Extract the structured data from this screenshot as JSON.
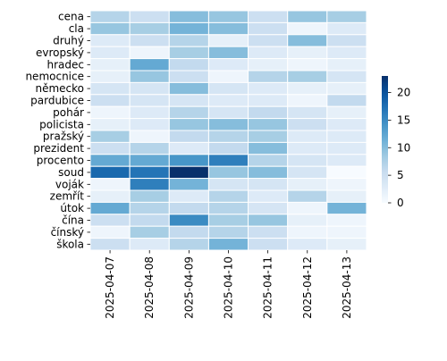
{
  "chart_data": {
    "type": "heatmap",
    "title": "",
    "xlabel": "",
    "ylabel": "",
    "x": [
      "2025-04-07",
      "2025-04-08",
      "2025-04-09",
      "2025-04-10",
      "2025-04-11",
      "2025-04-12",
      "2025-04-13"
    ],
    "y": [
      "cena",
      "cla",
      "druhý",
      "evropský",
      "hradec",
      "nemocnice",
      "německo",
      "pardubice",
      "pohár",
      "policista",
      "pražský",
      "prezident",
      "procento",
      "soud",
      "voják",
      "zemřít",
      "útok",
      "čína",
      "čínský",
      "škola"
    ],
    "values": [
      [
        7,
        5,
        10,
        9,
        5,
        9,
        8
      ],
      [
        9,
        8,
        11,
        10,
        5,
        1,
        3
      ],
      [
        3,
        5,
        7,
        2,
        5,
        10,
        5
      ],
      [
        3,
        1,
        8,
        10,
        3,
        2,
        3
      ],
      [
        2,
        12,
        6,
        3,
        2,
        1,
        2
      ],
      [
        2,
        9,
        5,
        1,
        7,
        8,
        4
      ],
      [
        4,
        4,
        10,
        4,
        3,
        2,
        2
      ],
      [
        5,
        4,
        4,
        3,
        3,
        1,
        6
      ],
      [
        1,
        3,
        7,
        4,
        6,
        4,
        2
      ],
      [
        2,
        3,
        9,
        10,
        9,
        5,
        3
      ],
      [
        8,
        1,
        6,
        7,
        8,
        3,
        3
      ],
      [
        5,
        7,
        3,
        6,
        10,
        3,
        3
      ],
      [
        12,
        12,
        14,
        16,
        7,
        4,
        3
      ],
      [
        18,
        17,
        23,
        9,
        10,
        4,
        0
      ],
      [
        1,
        16,
        11,
        4,
        4,
        2,
        1
      ],
      [
        2,
        8,
        3,
        7,
        3,
        7,
        2
      ],
      [
        12,
        7,
        6,
        7,
        4,
        1,
        11
      ],
      [
        5,
        6,
        15,
        8,
        9,
        2,
        1
      ],
      [
        1,
        8,
        6,
        7,
        5,
        1,
        1
      ],
      [
        5,
        3,
        7,
        11,
        5,
        3,
        2
      ]
    ],
    "vmin": 0,
    "vmax": 23,
    "colorbar_ticks": [
      0,
      5,
      10,
      15,
      20
    ],
    "colormap": "Blues",
    "grid": false,
    "legend": "right colorbar"
  }
}
